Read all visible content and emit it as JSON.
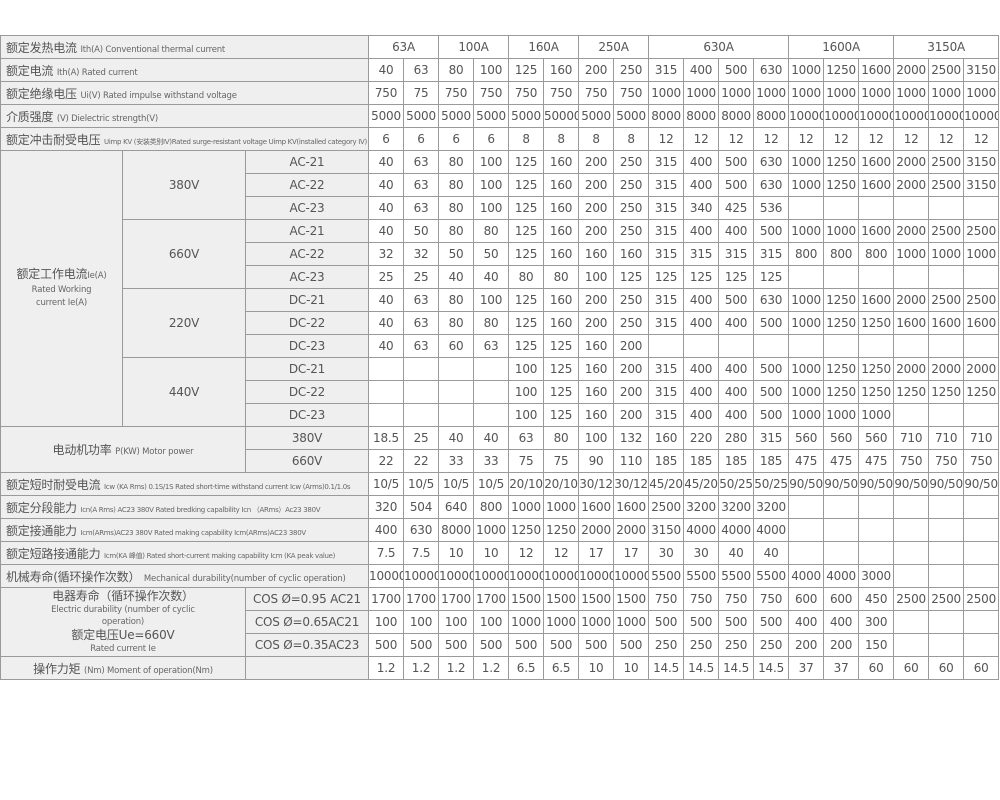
{
  "header": {
    "label_cn": "额定发热电流",
    "label_en": "Ith(A) Conventional thermal current",
    "groups": [
      {
        "label": "63A",
        "span": 2
      },
      {
        "label": "100A",
        "span": 2
      },
      {
        "label": "160A",
        "span": 2
      },
      {
        "label": "250A",
        "span": 2
      },
      {
        "label": "630A",
        "span": 4
      },
      {
        "label": "1600A",
        "span": 3
      },
      {
        "label": "3150A",
        "span": 3
      }
    ]
  },
  "top_rows": [
    {
      "label_cn": "额定电流",
      "label_en": "Ith(A)  Rated current",
      "values": [
        "40",
        "63",
        "80",
        "100",
        "125",
        "160",
        "200",
        "250",
        "315",
        "400",
        "500",
        "630",
        "1000",
        "1250",
        "1600",
        "2000",
        "2500",
        "3150"
      ]
    },
    {
      "label_cn": "额定绝缘电压",
      "label_en": "Ui(V)   Rated impulse withstand voltage",
      "values": [
        "750",
        "75",
        "750",
        "750",
        "750",
        "750",
        "750",
        "750",
        "1000",
        "1000",
        "1000",
        "1000",
        "1000",
        "1000",
        "1000",
        "1000",
        "1000",
        "1000"
      ]
    },
    {
      "label_cn": "介质强度",
      "label_en": "(V) Dielectric strength(V)",
      "values": [
        "5000",
        "5000",
        "5000",
        "5000",
        "5000",
        "50000",
        "5000",
        "5000",
        "8000",
        "8000",
        "8000",
        "8000",
        "10000",
        "10000",
        "10000",
        "10000",
        "10000",
        "10000"
      ]
    },
    {
      "label_cn": "额定冲击耐受电压",
      "label_en": "Uimp KV (安装类别IV)Rated surge-resistant voltage Uimp KV(installed category IV)",
      "small": true,
      "values": [
        "6",
        "6",
        "6",
        "6",
        "8",
        "8",
        "8",
        "8",
        "12",
        "12",
        "12",
        "12",
        "12",
        "12",
        "12",
        "12",
        "12",
        "12"
      ]
    }
  ],
  "working_current": {
    "label_cn": "额定工作电流",
    "label_cn_suffix": "Ie(A)",
    "label_en_1": "Rated Working",
    "label_en_2": "current Ie(A)",
    "voltages": [
      {
        "voltage": "380V",
        "categories": [
          {
            "name": "AC-21",
            "values": [
              "40",
              "63",
              "80",
              "100",
              "125",
              "160",
              "200",
              "250",
              "315",
              "400",
              "500",
              "630",
              "1000",
              "1250",
              "1600",
              "2000",
              "2500",
              "3150"
            ]
          },
          {
            "name": "AC-22",
            "values": [
              "40",
              "63",
              "80",
              "100",
              "125",
              "160",
              "200",
              "250",
              "315",
              "400",
              "500",
              "630",
              "1000",
              "1250",
              "1600",
              "2000",
              "2500",
              "3150"
            ]
          },
          {
            "name": "AC-23",
            "values": [
              "40",
              "63",
              "80",
              "100",
              "125",
              "160",
              "200",
              "250",
              "315",
              "340",
              "425",
              "536",
              "",
              "",
              "",
              "",
              "",
              ""
            ]
          }
        ]
      },
      {
        "voltage": "660V",
        "categories": [
          {
            "name": "AC-21",
            "values": [
              "40",
              "50",
              "80",
              "80",
              "125",
              "160",
              "200",
              "250",
              "315",
              "400",
              "400",
              "500",
              "1000",
              "1000",
              "1600",
              "2000",
              "2500",
              "2500"
            ]
          },
          {
            "name": "AC-22",
            "values": [
              "32",
              "32",
              "50",
              "50",
              "125",
              "160",
              "160",
              "160",
              "315",
              "315",
              "315",
              "315",
              "800",
              "800",
              "800",
              "1000",
              "1000",
              "1000"
            ]
          },
          {
            "name": "AC-23",
            "values": [
              "25",
              "25",
              "40",
              "40",
              "80",
              "80",
              "100",
              "125",
              "125",
              "125",
              "125",
              "125",
              "",
              "",
              "",
              "",
              "",
              ""
            ]
          }
        ]
      },
      {
        "voltage": "220V",
        "categories": [
          {
            "name": "DC-21",
            "values": [
              "40",
              "63",
              "80",
              "100",
              "125",
              "160",
              "200",
              "250",
              "315",
              "400",
              "500",
              "630",
              "1000",
              "1250",
              "1600",
              "2000",
              "2500",
              "2500"
            ]
          },
          {
            "name": "DC-22",
            "values": [
              "40",
              "63",
              "80",
              "80",
              "125",
              "160",
              "200",
              "250",
              "315",
              "400",
              "400",
              "500",
              "1000",
              "1250",
              "1250",
              "1600",
              "1600",
              "1600"
            ]
          },
          {
            "name": "DC-23",
            "values": [
              "40",
              "63",
              "60",
              "63",
              "125",
              "125",
              "160",
              "200",
              "",
              "",
              "",
              "",
              "",
              "",
              "",
              "",
              "",
              ""
            ]
          }
        ]
      },
      {
        "voltage": "440V",
        "categories": [
          {
            "name": "DC-21",
            "values": [
              "",
              "",
              "",
              "",
              "100",
              "125",
              "160",
              "200",
              "315",
              "400",
              "400",
              "500",
              "1000",
              "1250",
              "1250",
              "2000",
              "2000",
              "2000"
            ]
          },
          {
            "name": "DC-22",
            "values": [
              "",
              "",
              "",
              "",
              "100",
              "125",
              "160",
              "200",
              "315",
              "400",
              "400",
              "500",
              "1000",
              "1250",
              "1250",
              "1250",
              "1250",
              "1250"
            ]
          },
          {
            "name": "DC-23",
            "values": [
              "",
              "",
              "",
              "",
              "100",
              "125",
              "160",
              "200",
              "315",
              "400",
              "400",
              "500",
              "1000",
              "1000",
              "1000",
              "",
              "",
              ""
            ]
          }
        ]
      }
    ]
  },
  "motor_power": {
    "label_cn": "电动机功率",
    "label_en": "P(KW)  Motor power",
    "rows": [
      {
        "voltage": "380V",
        "values": [
          "18.5",
          "25",
          "40",
          "40",
          "63",
          "80",
          "100",
          "132",
          "160",
          "220",
          "280",
          "315",
          "560",
          "560",
          "560",
          "710",
          "710",
          "710"
        ]
      },
      {
        "voltage": "660V",
        "values": [
          "22",
          "22",
          "33",
          "33",
          "75",
          "75",
          "90",
          "110",
          "185",
          "185",
          "185",
          "185",
          "475",
          "475",
          "475",
          "750",
          "750",
          "750"
        ]
      }
    ]
  },
  "mid_rows": [
    {
      "label_cn": "额定短时耐受电流",
      "label_en": "Icw (KA Rms) 0.1S/1S Rated short-time withstand current Icw (Arms)0.1/1.0s",
      "small": true,
      "values": [
        "10/5",
        "10/5",
        "10/5",
        "10/5",
        "20/10",
        "20/10",
        "30/12",
        "30/12",
        "45/20",
        "45/20",
        "50/25",
        "50/25",
        "90/50",
        "90/50",
        "90/50",
        "90/50",
        "90/50",
        "90/50"
      ]
    },
    {
      "label_cn": "额定分段能力",
      "label_en": "Icn(A Rms)  AC23 380V Rated bredking capalbility Icn （ARms）Ac23 380V",
      "small": true,
      "values": [
        "320",
        "504",
        "640",
        "800",
        "1000",
        "1000",
        "1600",
        "1600",
        "2500",
        "3200",
        "3200",
        "3200",
        "",
        "",
        "",
        "",
        "",
        ""
      ]
    },
    {
      "label_cn": "额定接通能力",
      "label_en": "Icm(ARms)AC23 380V Rated making capability Icm(ARms)AC23 380V",
      "small": true,
      "values": [
        "400",
        "630",
        "8000",
        "1000",
        "1250",
        "1250",
        "2000",
        "2000",
        "3150",
        "4000",
        "4000",
        "4000",
        "",
        "",
        "",
        "",
        "",
        ""
      ]
    },
    {
      "label_cn": "额定短路接通能力",
      "label_en": "Icm(KA 峰值)  Rated short-current making capability Icm (KA peak value)",
      "small": true,
      "values": [
        "7.5",
        "7.5",
        "10",
        "10",
        "12",
        "12",
        "17",
        "17",
        "30",
        "30",
        "40",
        "40",
        "",
        "",
        "",
        "",
        "",
        ""
      ]
    },
    {
      "label_cn": "机械寿命(循环操作次数）",
      "label_en": "Mechanical durability(number of cyclic operation)",
      "values": [
        "10000",
        "10000",
        "10000",
        "10000",
        "10000",
        "10000",
        "10000",
        "10000",
        "5500",
        "5500",
        "5500",
        "5500",
        "4000",
        "4000",
        "3000",
        "",
        "",
        ""
      ]
    }
  ],
  "electric_durability": {
    "label_cn": "电器寿命（循环操作次数）",
    "label_en_1": "Electric durability (number of cyclic",
    "label_en_2": "operation)",
    "voltage_cn": "额定电压Ue=660V",
    "voltage_en": "Rated current Ie",
    "rows": [
      {
        "condition": "COS Ø=0.95 AC21",
        "values": [
          "1700",
          "1700",
          "1700",
          "1700",
          "1500",
          "1500",
          "1500",
          "1500",
          "750",
          "750",
          "750",
          "750",
          "600",
          "600",
          "450",
          "2500",
          "2500",
          "2500"
        ]
      },
      {
        "condition": "COS Ø=0.65AC21",
        "values": [
          "100",
          "100",
          "100",
          "100",
          "1000",
          "1000",
          "1000",
          "1000",
          "500",
          "500",
          "500",
          "500",
          "400",
          "400",
          "300",
          "",
          "",
          ""
        ]
      },
      {
        "condition": "COS Ø=0.35AC23",
        "values": [
          "500",
          "500",
          "500",
          "500",
          "500",
          "500",
          "500",
          "500",
          "250",
          "250",
          "250",
          "250",
          "200",
          "200",
          "150",
          "",
          "",
          ""
        ]
      }
    ]
  },
  "moment": {
    "label_cn": "操作力矩",
    "label_en": "(Nm)  Moment of operation(Nm)",
    "values": [
      "1.2",
      "1.2",
      "1.2",
      "1.2",
      "6.5",
      "6.5",
      "10",
      "10",
      "14.5",
      "14.5",
      "14.5",
      "14.5",
      "37",
      "37",
      "60",
      "60",
      "60",
      "60"
    ]
  }
}
